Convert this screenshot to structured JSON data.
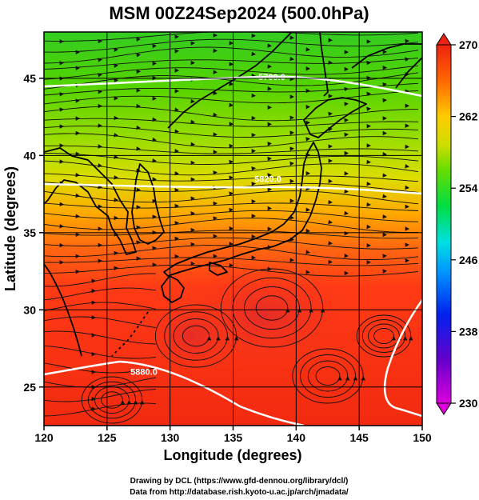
{
  "title": "MSM 00Z24Sep2024 (500.0hPa)",
  "map": {
    "xlabel": "Longitude (degrees)",
    "ylabel": "Latitude  (degrees)",
    "x_range": [
      120,
      150
    ],
    "y_range": [
      22.5,
      48
    ],
    "x_ticks": [
      120,
      125,
      130,
      135,
      140,
      145,
      150
    ],
    "y_ticks": [
      25,
      30,
      35,
      40,
      45
    ],
    "x_tick_labels": [
      "120",
      "125",
      "130",
      "135",
      "140",
      "145",
      "150"
    ],
    "y_tick_labels": [
      "25",
      "30",
      "35",
      "40",
      "45"
    ],
    "grid": true,
    "field": "temperature (shaded) with wind streamlines",
    "contours": [
      {
        "label": "5700.0",
        "lat": 45.1
      },
      {
        "label": "5820.0",
        "lat": 38.5
      },
      {
        "label": "5880.0",
        "lat": 26.0
      }
    ]
  },
  "colorbar": {
    "min": 230,
    "max": 270,
    "tick_labels": [
      "270",
      "262",
      "254",
      "246",
      "238",
      "230"
    ],
    "tick_values": [
      270,
      262,
      254,
      246,
      238,
      230
    ],
    "extend": "both",
    "colors": [
      "#cc00cc",
      "#3300cc",
      "#0033ff",
      "#00aaff",
      "#00e6cc",
      "#00dd44",
      "#66dd00",
      "#ccdd00",
      "#ffdd00",
      "#ff8800",
      "#ff3311",
      "#dd1111"
    ]
  },
  "credits": {
    "line1": "Drawing by DCL (https://www.gfd-dennou.org/library/dcl/)",
    "line2": "Data from http://database.rish.kyoto-u.ac.jp/arch/jmadata/"
  }
}
